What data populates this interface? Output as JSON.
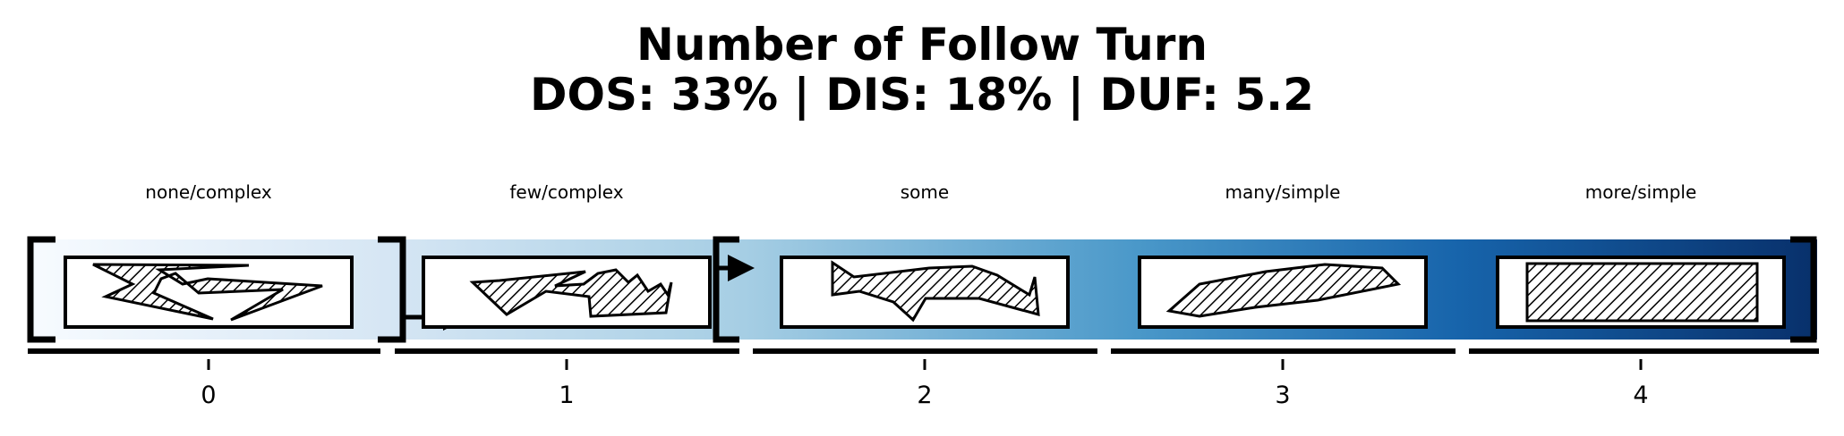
{
  "title": "Number of Follow Turn",
  "subtitle": "DOS: 33% | DIS: 18% | DUF: 5.2",
  "levels": [
    {
      "index": "0",
      "label": "none/complex"
    },
    {
      "index": "1",
      "label": "few/complex"
    },
    {
      "index": "2",
      "label": "some"
    },
    {
      "index": "3",
      "label": "many/simple"
    },
    {
      "index": "4",
      "label": "more/simple"
    }
  ],
  "colors": {
    "gradient_start": "#f7fbff",
    "gradient_1": "#d6e6f4",
    "gradient_2": "#a6cee4",
    "gradient_3": "#4a98c9",
    "gradient_4": "#1764ab",
    "gradient_end": "#08306b",
    "stroke": "#000000",
    "box_fill": "#ffffff"
  },
  "glyph_style": "hatched-polygon",
  "markers": [
    "bracket",
    "arrow"
  ]
}
